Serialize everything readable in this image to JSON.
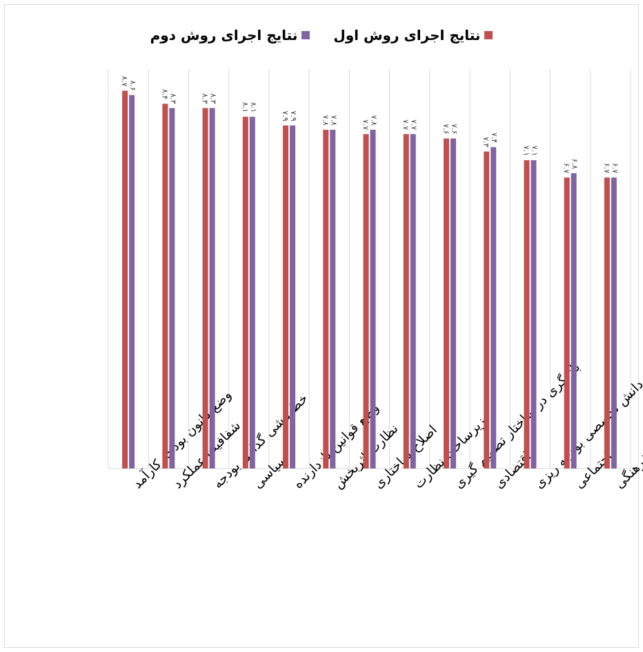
{
  "legend": {
    "series1": "نتایج اجرای روش اول",
    "series2": "نتایج اجرای روش دوم"
  },
  "colors": {
    "series1": "#C0504D",
    "series2": "#8064A2",
    "grid": "#d9d9d9"
  },
  "chart_data": {
    "type": "bar",
    "direction": "rtl",
    "legend_position": "top",
    "grid": true,
    "ylim": [
      0,
      9.2
    ],
    "categories": [
      "وضع قانون بودجه کارآمد",
      "شفافیت عملکرد",
      "خط مشی گذاری بودجه",
      "سیاسی",
      "وضع قوانین بازدارنده",
      "نظارت اثربخش",
      "اصلاح ساختاری",
      "زیرساخت نظارت",
      "بازنگری در ساختار تصمیم گیری",
      "اقتصادی",
      "دانش تخصصی بودجه ریزی",
      "اجتماعی",
      "فرهنگی"
    ],
    "series": [
      {
        "name": "نتایج اجرای روش اول",
        "values": [
          8.7,
          8.4,
          8.3,
          8.1,
          7.9,
          7.8,
          7.7,
          7.7,
          7.6,
          7.3,
          7.1,
          6.7,
          6.7
        ]
      },
      {
        "name": "نتایج اجرای روش دوم",
        "values": [
          8.6,
          8.3,
          8.3,
          8.1,
          7.9,
          7.8,
          7.8,
          7.7,
          7.6,
          7.4,
          7.1,
          6.8,
          6.7
        ]
      }
    ],
    "data_labels": {
      "series1": [
        "۸.۷",
        "۸.۴",
        "۸.۳",
        "۸.۱",
        "۷.۹",
        "۷.۸",
        "۷.۷",
        "۷.۷",
        "۷.۶",
        "۷.۳",
        "۷.۱",
        "۶.۷",
        "۶.۷"
      ],
      "series2": [
        "۸.۶",
        "۸.۳",
        "۸.۳",
        "۸.۱",
        "۷.۹",
        "۷.۸",
        "۷.۸",
        "۷.۷",
        "۷.۶",
        "۷.۴",
        "۷.۱",
        "۶.۸",
        "۶.۷"
      ]
    }
  }
}
